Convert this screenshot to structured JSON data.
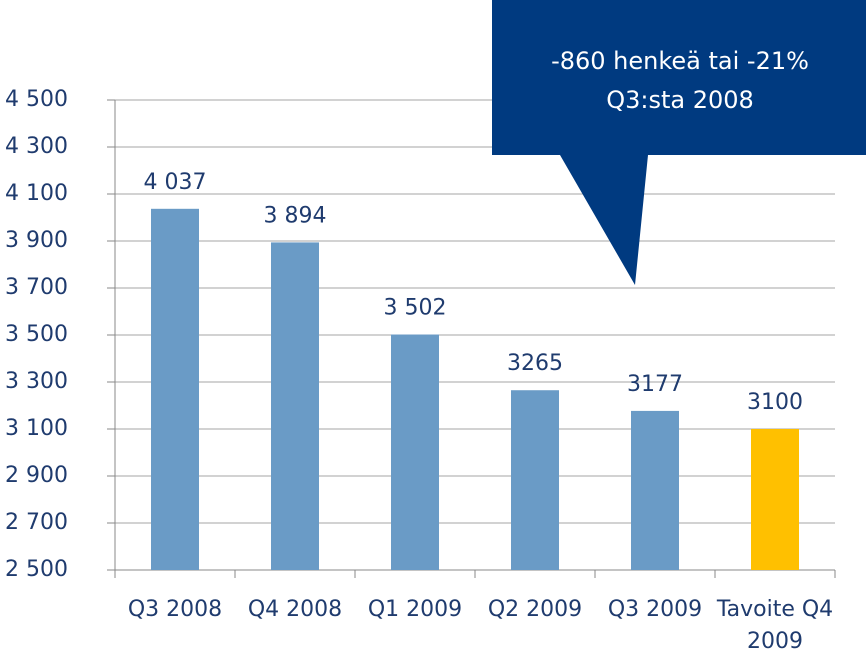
{
  "chart_data": {
    "type": "bar",
    "categories": [
      "Q3 2008",
      "Q4 2008",
      "Q1 2009",
      "Q2 2009",
      "Q3 2009",
      "Tavoite Q4 2009"
    ],
    "values": [
      4037,
      3894,
      3502,
      3265,
      3177,
      3100
    ],
    "value_labels": [
      "4 037",
      "3 894",
      "3 502",
      "3265",
      "3177",
      "3100"
    ],
    "colors": [
      "#6a9bc6",
      "#6a9bc6",
      "#6a9bc6",
      "#6a9bc6",
      "#6a9bc6",
      "#ffc000"
    ],
    "ylim": [
      2500,
      4500
    ],
    "yticks": [
      {
        "value": 2500,
        "label": "2 500"
      },
      {
        "value": 2700,
        "label": "2 700"
      },
      {
        "value": 2900,
        "label": "2 900"
      },
      {
        "value": 3100,
        "label": "3 100"
      },
      {
        "value": 3300,
        "label": "3 300"
      },
      {
        "value": 3500,
        "label": "3 500"
      },
      {
        "value": 3700,
        "label": "3 700"
      },
      {
        "value": 3900,
        "label": "3 900"
      },
      {
        "value": 4100,
        "label": "4 100"
      },
      {
        "value": 4300,
        "label": "4 300"
      },
      {
        "value": 4500,
        "label": "4 500"
      }
    ],
    "grid": true,
    "annotation": [
      "-860 henkeä tai -21%",
      "Q3:sta 2008"
    ]
  }
}
